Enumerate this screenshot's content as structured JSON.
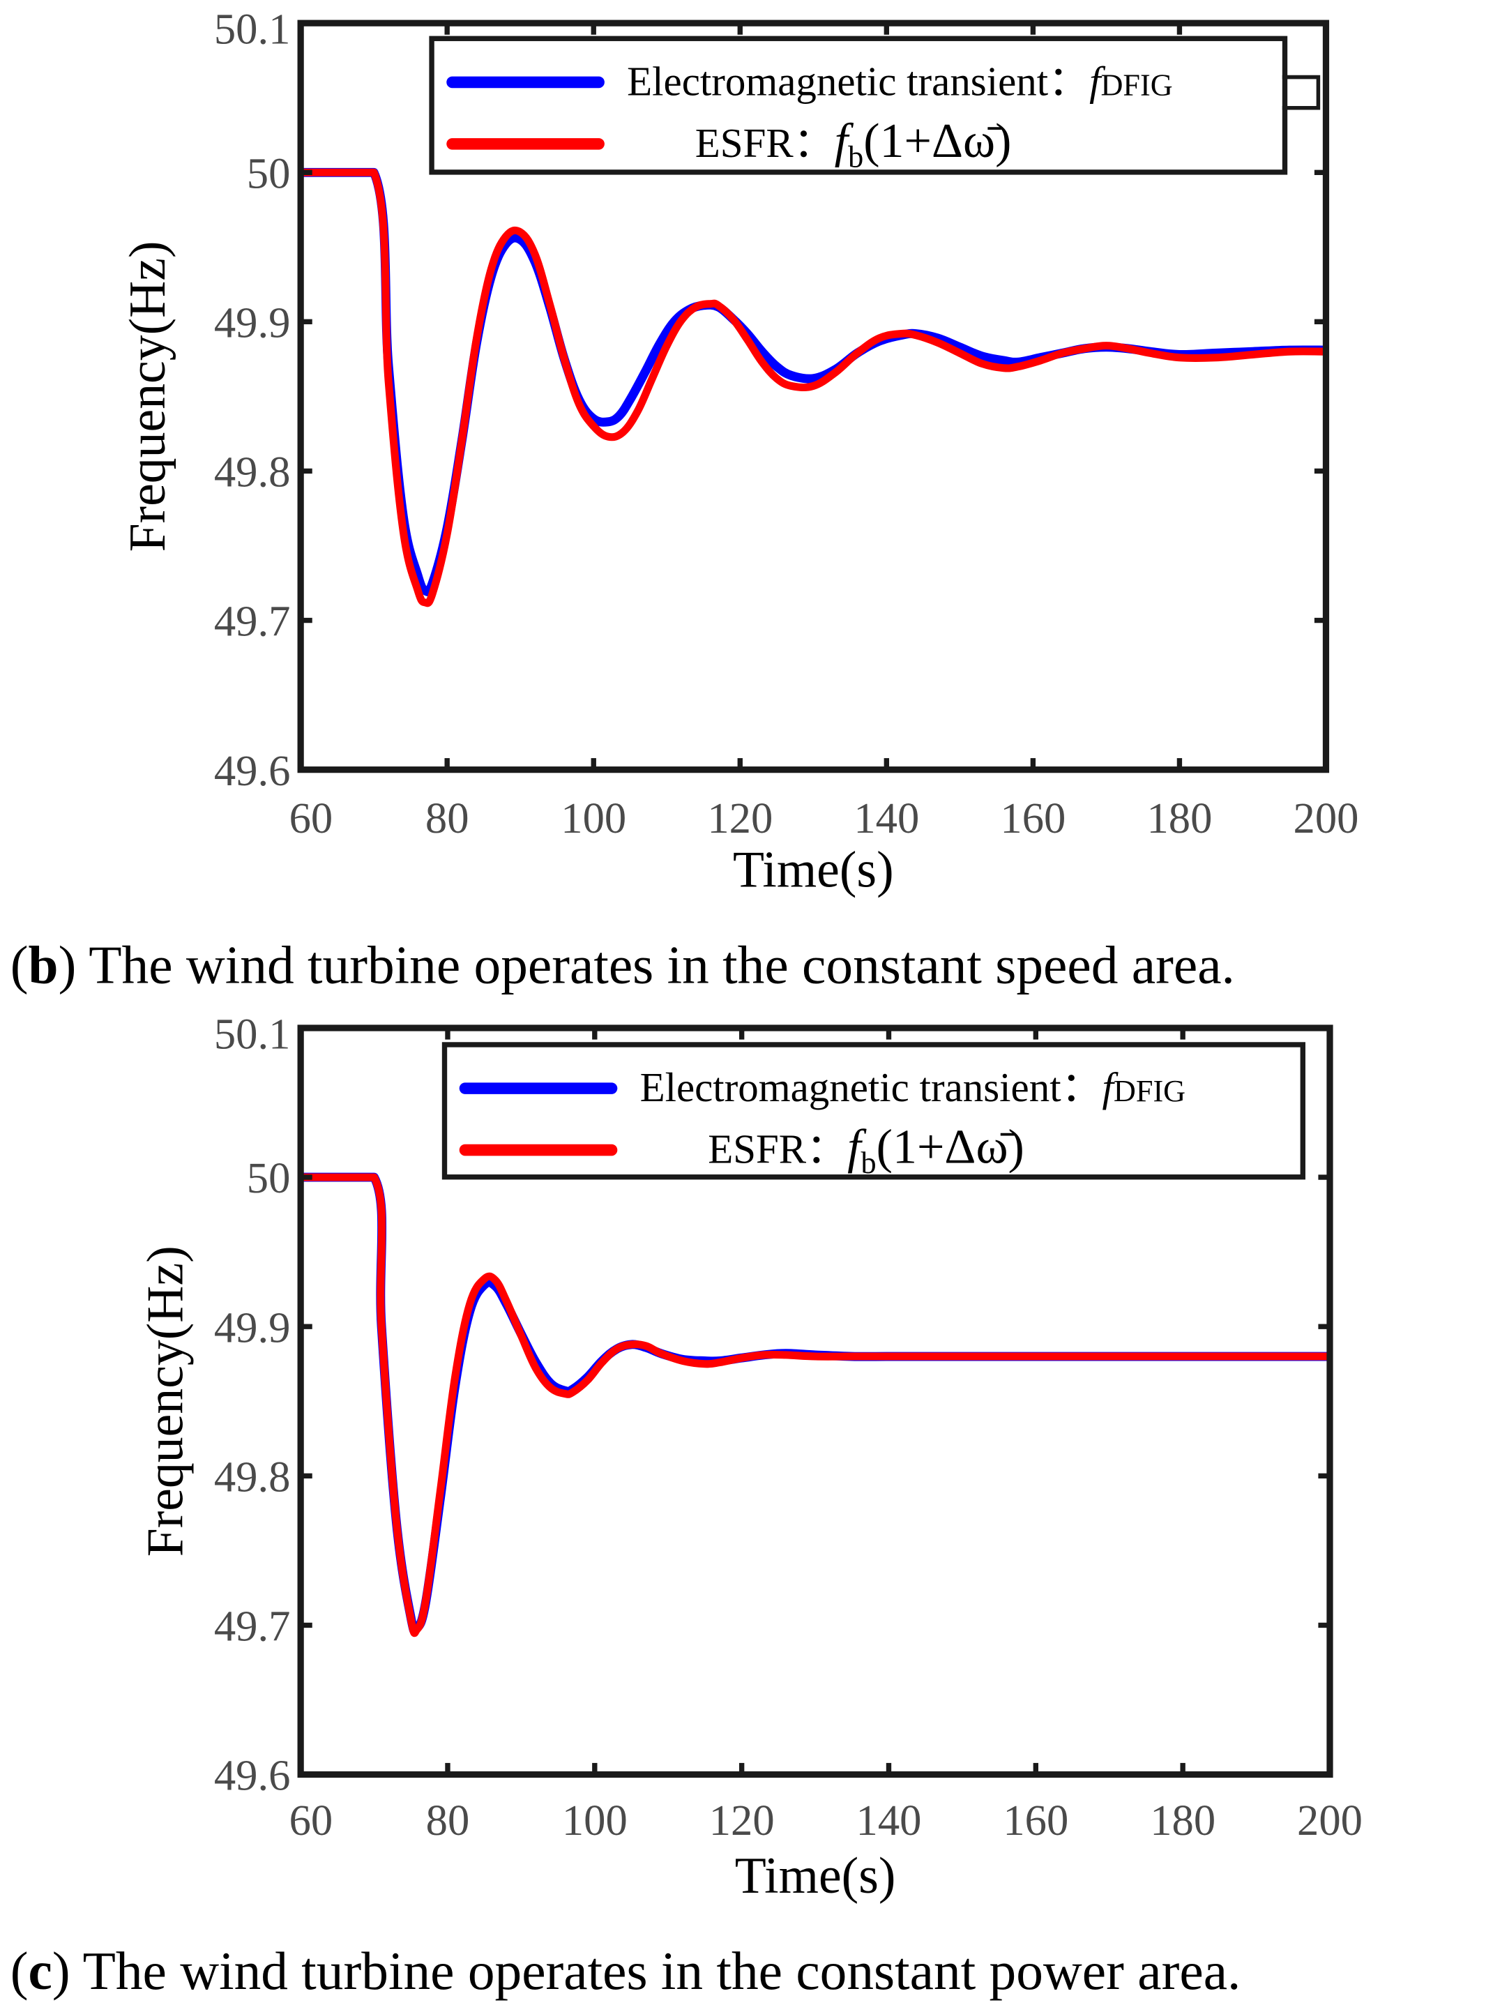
{
  "chart_data": [
    {
      "type": "line",
      "panel": "b",
      "caption_label": "b",
      "caption_text": "The wind turbine operates in the constant speed area.",
      "xlabel": "Time(s)",
      "ylabel": "Frequency(Hz)",
      "xlim": [
        60,
        200
      ],
      "ylim": [
        49.6,
        50.1
      ],
      "xticks": [
        "60",
        "80",
        "100",
        "120",
        "140",
        "160",
        "180",
        "200"
      ],
      "yticks": [
        "49.6",
        "49.7",
        "49.8",
        "49.9",
        "50",
        "50.1"
      ],
      "legend_location": "top-right",
      "legend": [
        {
          "text": "Electromagnetic transient：",
          "math": "f",
          "sub": "DFIG"
        },
        {
          "text": "ESFR：",
          "math": "f",
          "sub": "b",
          "tail": "(1+Δω̄)"
        }
      ],
      "series": [
        {
          "name": "Electromagnetic transient",
          "color": "#0000ff",
          "x": [
            60,
            70,
            72,
            74,
            76,
            77,
            78,
            80,
            82,
            84,
            86,
            88,
            90,
            92,
            94,
            96,
            98,
            100,
            102,
            103.5,
            105,
            107,
            109,
            111,
            113,
            115,
            117,
            119,
            121,
            123,
            125,
            127,
            130,
            133,
            136,
            139,
            142,
            144,
            147,
            150,
            153,
            156,
            158,
            161,
            164,
            167,
            170,
            173,
            176,
            180,
            185,
            190,
            195,
            200
          ],
          "y": [
            50,
            50,
            49.87,
            49.77,
            49.73,
            49.72,
            49.725,
            49.762,
            49.82,
            49.885,
            49.93,
            49.952,
            49.955,
            49.94,
            49.91,
            49.875,
            49.848,
            49.835,
            49.833,
            49.837,
            49.848,
            49.866,
            49.885,
            49.9,
            49.908,
            49.911,
            49.91,
            49.902,
            49.892,
            49.88,
            49.87,
            49.864,
            49.862,
            49.868,
            49.879,
            49.887,
            49.891,
            49.892,
            49.889,
            49.883,
            49.877,
            49.874,
            49.873,
            49.876,
            49.879,
            49.882,
            49.883,
            49.882,
            49.88,
            49.878,
            49.879,
            49.88,
            49.881,
            49.881
          ]
        },
        {
          "name": "ESFR",
          "color": "#ff0000",
          "x": [
            60,
            70,
            72,
            74,
            76,
            77,
            78,
            80,
            82,
            84,
            86,
            88,
            90,
            92,
            94,
            96,
            98,
            100,
            102,
            104,
            106,
            108,
            110,
            112,
            114,
            116,
            117,
            119,
            121,
            123,
            125,
            127,
            130,
            133,
            136,
            139,
            142,
            144,
            147,
            150,
            153,
            156,
            158,
            161,
            164,
            167,
            170,
            173,
            176,
            180,
            185,
            190,
            195,
            200
          ],
          "y": [
            50,
            50,
            49.86,
            49.76,
            49.72,
            49.712,
            49.718,
            49.758,
            49.82,
            49.888,
            49.935,
            49.957,
            49.96,
            49.945,
            49.912,
            49.875,
            49.845,
            49.83,
            49.823,
            49.826,
            49.84,
            49.862,
            49.884,
            49.901,
            49.91,
            49.912,
            49.911,
            49.902,
            49.888,
            49.873,
            49.862,
            49.857,
            49.857,
            49.866,
            49.879,
            49.889,
            49.892,
            49.891,
            49.886,
            49.879,
            49.872,
            49.869,
            49.87,
            49.874,
            49.879,
            49.882,
            49.884,
            49.882,
            49.879,
            49.876,
            49.876,
            49.878,
            49.88,
            49.88
          ]
        }
      ]
    },
    {
      "type": "line",
      "panel": "c",
      "caption_label": "c",
      "caption_text": "The wind turbine operates in the constant power area.",
      "xlabel": "Time(s)",
      "ylabel": "Frequency(Hz)",
      "xlim": [
        60,
        200
      ],
      "ylim": [
        49.6,
        50.1
      ],
      "xticks": [
        "60",
        "80",
        "100",
        "120",
        "140",
        "160",
        "180",
        "200"
      ],
      "yticks": [
        "49.6",
        "49.7",
        "49.8",
        "49.9",
        "50",
        "50.1"
      ],
      "legend_location": "top-right",
      "legend": [
        {
          "text": "Electromagnetic transient：",
          "math": "f",
          "sub": "DFIG"
        },
        {
          "text": "ESFR：",
          "math": "f",
          "sub": "b",
          "tail": "(1+Δω̄)"
        }
      ],
      "series": [
        {
          "name": "Electromagnetic transient",
          "color": "#0000ff",
          "x": [
            60,
            70,
            71,
            73,
            75,
            75.8,
            77,
            79,
            81,
            83,
            85,
            86.5,
            88,
            90,
            92,
            94,
            96,
            97,
            99,
            101,
            103,
            105,
            107,
            109,
            112,
            115,
            117,
            120,
            123,
            126,
            130,
            135,
            140,
            150,
            160,
            170,
            180,
            190,
            200
          ],
          "y": [
            50,
            50,
            49.9,
            49.77,
            49.705,
            49.698,
            49.715,
            49.785,
            49.86,
            49.91,
            49.928,
            49.927,
            49.915,
            49.895,
            49.876,
            49.862,
            49.857,
            49.858,
            49.866,
            49.877,
            49.885,
            49.888,
            49.886,
            49.882,
            49.878,
            49.877,
            49.877,
            49.879,
            49.881,
            49.882,
            49.881,
            49.88,
            49.88,
            49.88,
            49.88,
            49.88,
            49.88,
            49.88,
            49.88
          ]
        },
        {
          "name": "ESFR",
          "color": "#ff0000",
          "x": [
            60,
            70,
            71,
            73,
            75,
            75.8,
            77,
            79,
            81,
            83,
            85,
            86.5,
            88,
            90,
            92,
            94,
            96,
            97,
            99,
            101,
            103,
            105,
            107,
            109,
            112,
            115,
            117,
            120,
            123,
            126,
            130,
            135,
            140,
            150,
            160,
            170,
            180,
            190,
            200
          ],
          "y": [
            50,
            50,
            49.9,
            49.77,
            49.704,
            49.697,
            49.716,
            49.79,
            49.866,
            49.915,
            49.932,
            49.931,
            49.917,
            49.894,
            49.872,
            49.859,
            49.855,
            49.856,
            49.864,
            49.876,
            49.885,
            49.888,
            49.887,
            49.882,
            49.877,
            49.875,
            49.876,
            49.879,
            49.881,
            49.881,
            49.88,
            49.88,
            49.88,
            49.88,
            49.88,
            49.88,
            49.88,
            49.88,
            49.88
          ]
        }
      ]
    }
  ]
}
